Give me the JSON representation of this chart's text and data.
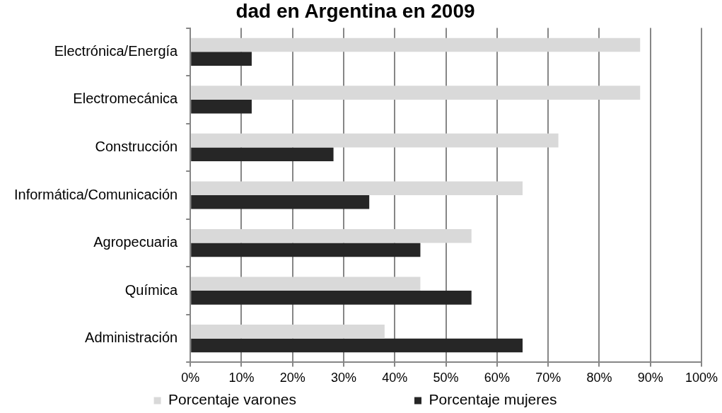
{
  "chart_data": {
    "type": "bar",
    "orientation": "horizontal",
    "title": "dad en Argentina en 2009",
    "categories": [
      "Electrónica/Energía",
      "Electromecánica",
      "Construcción",
      "Informática/Comunicación",
      "Agropecuaria",
      "Química",
      "Administración"
    ],
    "series": [
      {
        "name": "Porcentaje varones",
        "color": "#d9d9d9",
        "values": [
          88,
          88,
          72,
          65,
          55,
          45,
          38
        ]
      },
      {
        "name": "Porcentaje mujeres",
        "color": "#262626",
        "values": [
          12,
          12,
          28,
          35,
          45,
          55,
          65
        ]
      }
    ],
    "xlim": [
      0,
      100
    ],
    "xticks": [
      {
        "value": 0,
        "label": "0%"
      },
      {
        "value": 10,
        "label": "10%"
      },
      {
        "value": 20,
        "label": "20%"
      },
      {
        "value": 30,
        "label": "30%"
      },
      {
        "value": 40,
        "label": "40%"
      },
      {
        "value": 50,
        "label": "50%"
      },
      {
        "value": 60,
        "label": "60%"
      },
      {
        "value": 70,
        "label": "70%"
      },
      {
        "value": 80,
        "label": "80%"
      },
      {
        "value": 90,
        "label": "90%"
      },
      {
        "value": 100,
        "label": "100%"
      }
    ],
    "grid": "x",
    "legend": "bottom"
  }
}
